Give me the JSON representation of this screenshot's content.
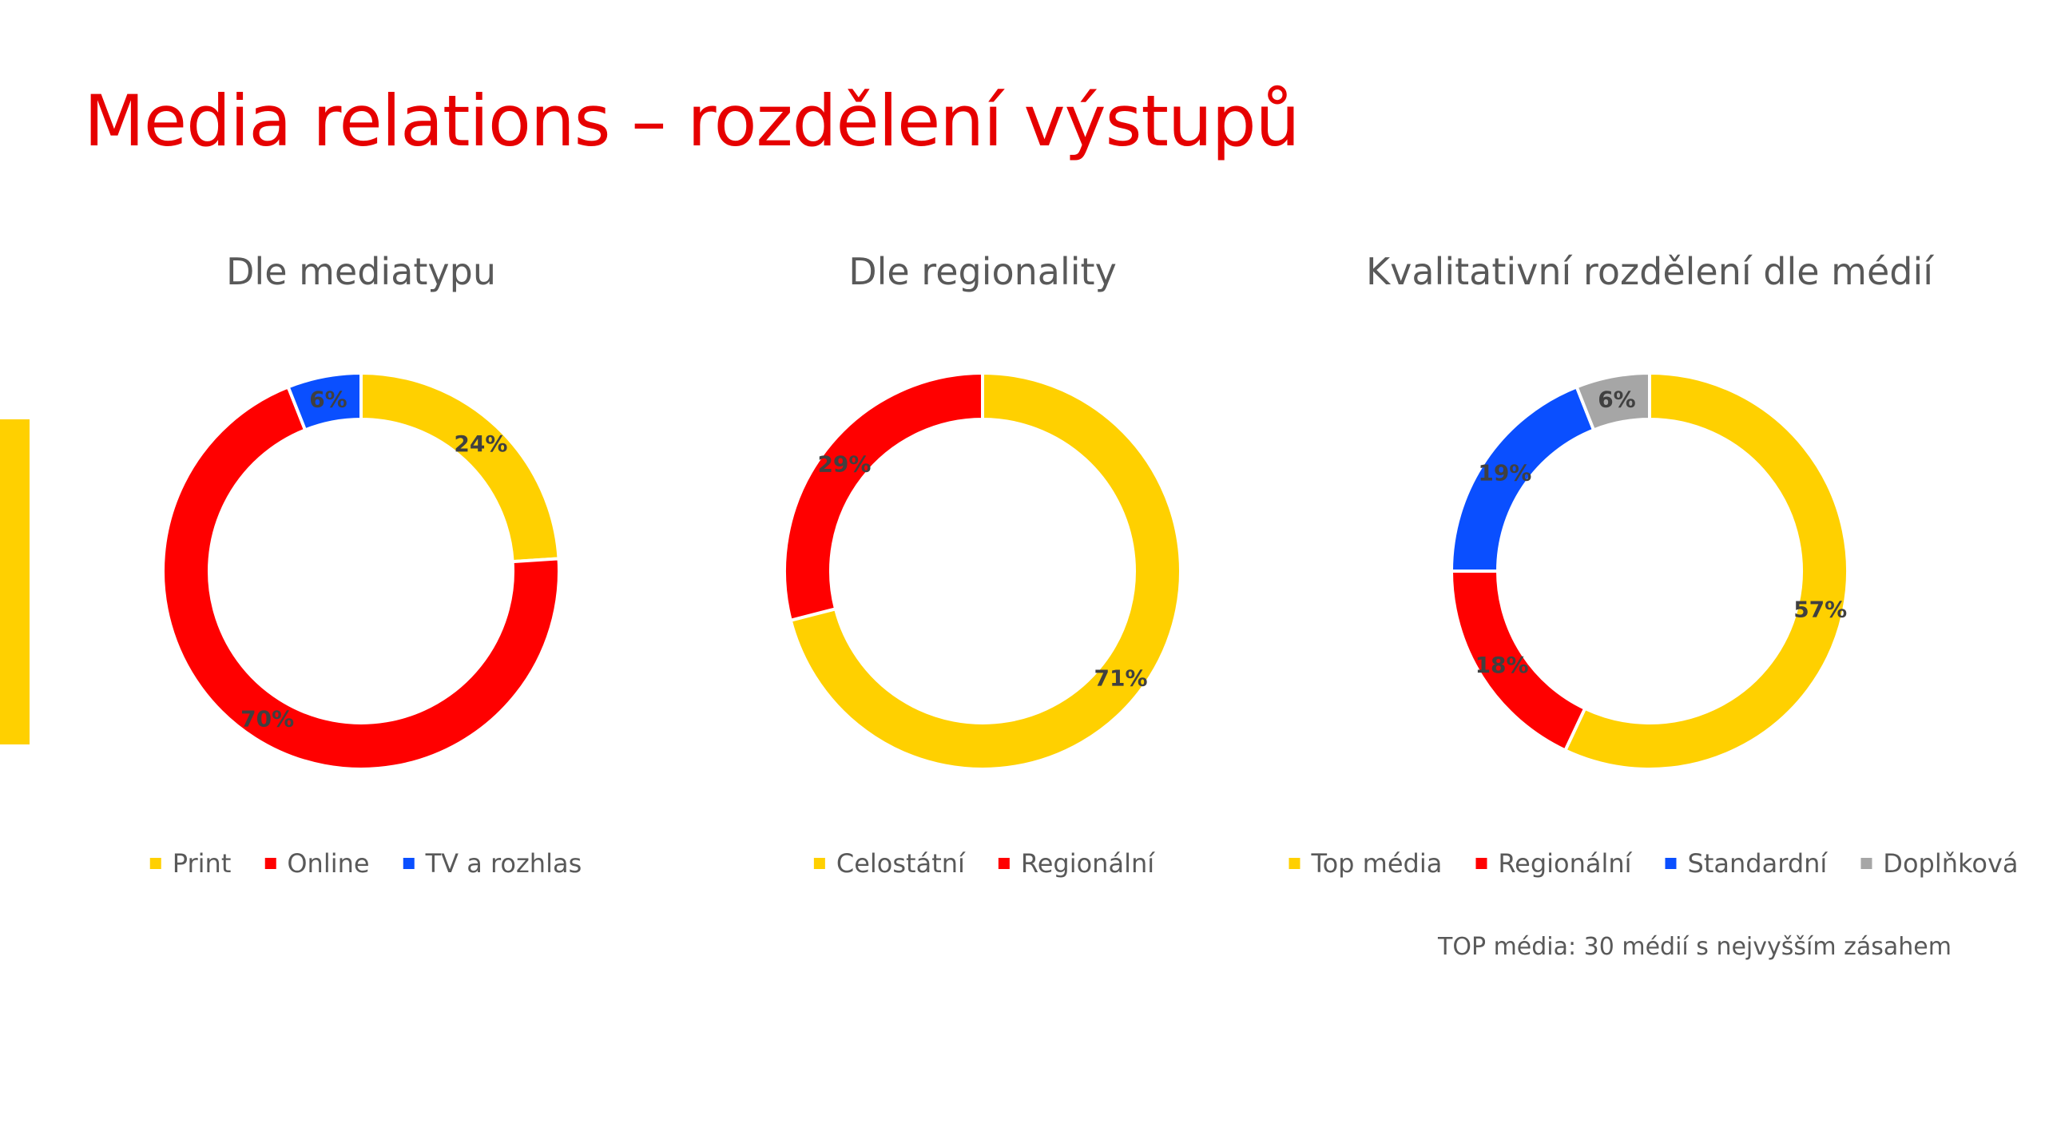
{
  "slide": {
    "title": "Media relations – rozdělení výstupů",
    "footnote": "TOP média: 30 médií s nejvyšším zásahem"
  },
  "colors": {
    "title": "#e60000",
    "yellow": "#ffd000",
    "red": "#ff0000",
    "blue": "#0a4fff",
    "gray": "#a6a6a6"
  },
  "chart_data": [
    {
      "type": "pie",
      "title": "Dle mediatypu",
      "categories": [
        "Print",
        "Online",
        "TV a rozhlas"
      ],
      "values": [
        24,
        70,
        6
      ],
      "labels": [
        "24%",
        "70%",
        "6%"
      ],
      "colors": [
        "#ffd000",
        "#ff0000",
        "#0a4fff"
      ],
      "legend": "bottom"
    },
    {
      "type": "pie",
      "title": "Dle regionality",
      "categories": [
        "Celostátní",
        "Regionální"
      ],
      "values": [
        71,
        29
      ],
      "labels": [
        "71%",
        "29%"
      ],
      "colors": [
        "#ffd000",
        "#ff0000"
      ],
      "legend": "bottom"
    },
    {
      "type": "pie",
      "title": "Kvalitativní rozdělení dle médií",
      "categories": [
        "Top média",
        "Regionální",
        "Standardní",
        "Doplňková"
      ],
      "values": [
        57,
        18,
        19,
        6
      ],
      "labels": [
        "57%",
        "18%",
        "19%",
        "6%"
      ],
      "colors": [
        "#ffd000",
        "#ff0000",
        "#0a4fff",
        "#a6a6a6"
      ],
      "legend": "bottom"
    }
  ]
}
